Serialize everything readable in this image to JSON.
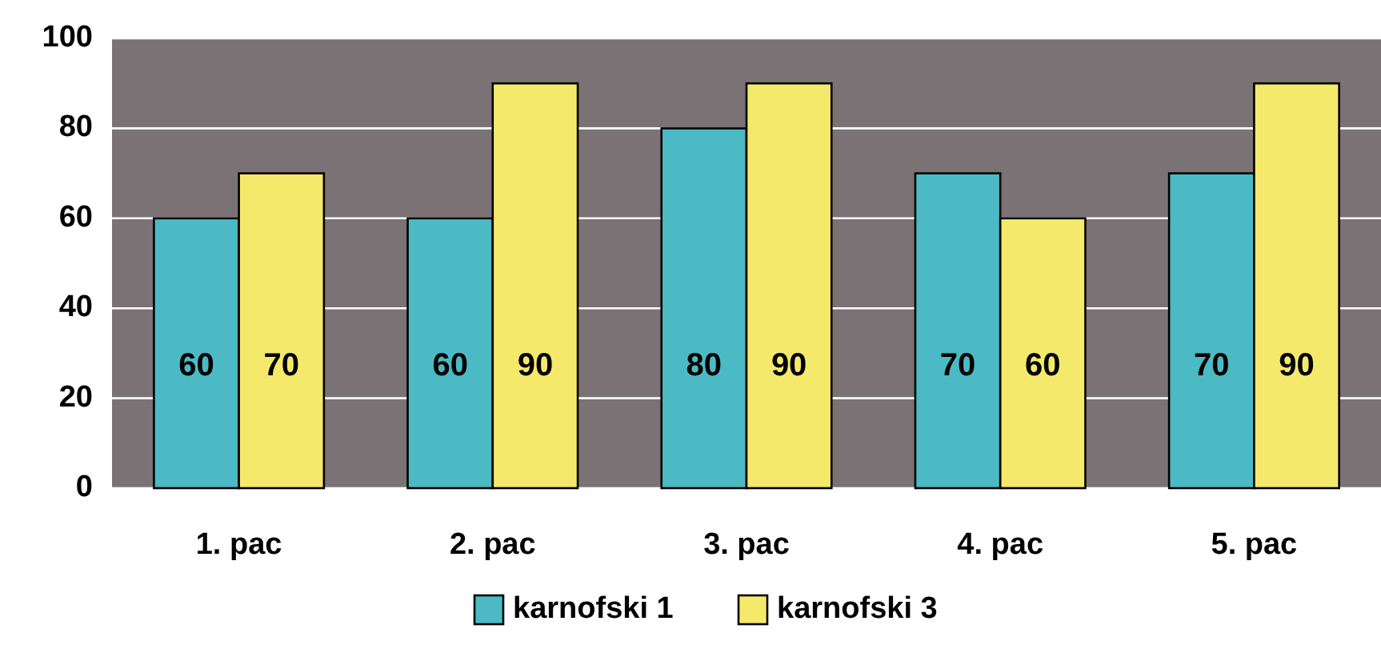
{
  "chart_data": {
    "type": "bar",
    "categories": [
      "1. pac",
      "2. pac",
      "3. pac",
      "4. pac",
      "5. pac"
    ],
    "series": [
      {
        "name": "karnofski 1",
        "color": "#4bbac4",
        "values": [
          60,
          60,
          80,
          70,
          70
        ]
      },
      {
        "name": "karnofski 3",
        "color": "#f5e96b",
        "values": [
          70,
          90,
          90,
          60,
          90
        ]
      }
    ],
    "ylim": [
      0,
      100
    ],
    "yticks": [
      0,
      20,
      40,
      60,
      80,
      100
    ],
    "grid": "y",
    "legend": "bottom",
    "data_labels": true
  }
}
